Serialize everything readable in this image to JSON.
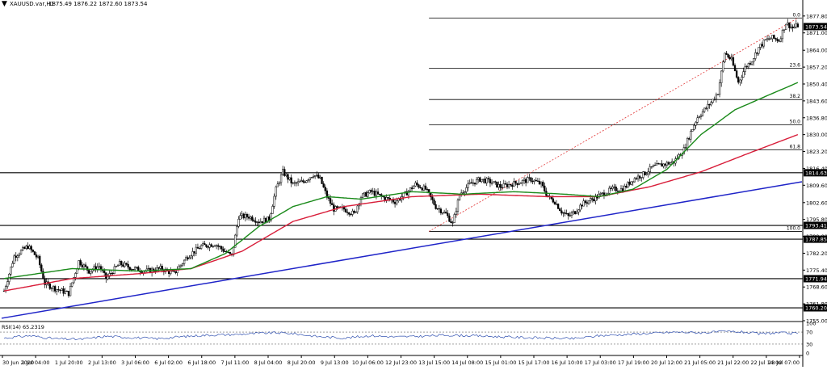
{
  "header": {
    "symbol": "XAUUSD.var,H1",
    "ohlc": "1875.49 1876.22 1872.60 1873.54"
  },
  "colors": {
    "up_candle": "#000000",
    "down_candle": "#000000",
    "ma_fast": "#1a8a1a",
    "ma_slow": "#d81e3a",
    "trendline": "#1f24c8",
    "fib_diagonal": "#e03030",
    "rsi": "#3050b0",
    "level_lines": "#000000"
  },
  "chart_data": [
    {
      "type": "line",
      "title": "XAUUSD.var,H1",
      "ylim": [
        1755.0,
        1881.0
      ],
      "y_ticks": [
        "1877.80",
        "1871.00",
        "1864.00",
        "1857.20",
        "1850.40",
        "1843.60",
        "1836.80",
        "1830.00",
        "1823.20",
        "1816.40",
        "1809.60",
        "1802.60",
        "1795.80",
        "1789.00",
        "1782.20",
        "1775.40",
        "1768.60",
        "1761.80",
        "1755.00"
      ],
      "x_labels": [
        "30 Jun 2020",
        "1 Jul 04:00",
        "1 Jul 20:00",
        "2 Jul 13:00",
        "3 Jul 06:00",
        "6 Jul 02:00",
        "6 Jul 18:00",
        "7 Jul 11:00",
        "8 Jul 04:00",
        "8 Jul 20:00",
        "9 Jul 13:00",
        "10 Jul 06:00",
        "12 Jul 23:00",
        "13 Jul 15:00",
        "14 Jul 08:00",
        "15 Jul 01:00",
        "15 Jul 17:00",
        "16 Jul 10:00",
        "17 Jul 03:00",
        "17 Jul 19:00",
        "20 Jul 12:00",
        "21 Jul 05:00",
        "21 Jul 22:00",
        "22 Jul 14:00",
        "23 Jul 07:00"
      ],
      "price_levels": [
        {
          "label": "1814.63",
          "value": 1814.63
        },
        {
          "label": "1793.41",
          "value": 1793.41
        },
        {
          "label": "1787.85",
          "value": 1787.85
        },
        {
          "label": "1771.94",
          "value": 1771.94
        },
        {
          "label": "1760.20",
          "value": 1760.2
        }
      ],
      "current_price": {
        "label": "1873.54",
        "value": 1873.54
      },
      "fibonacci": {
        "high": 1877.0,
        "low": 1791.0,
        "levels": [
          {
            "label": "0.0",
            "ratio": 0.0
          },
          {
            "label": "23.6",
            "ratio": 0.236
          },
          {
            "label": "38.2",
            "ratio": 0.382
          },
          {
            "label": "50.0",
            "ratio": 0.5
          },
          {
            "label": "61.8",
            "ratio": 0.618
          },
          {
            "label": "100.0",
            "ratio": 1.0
          }
        ]
      },
      "trendline": [
        {
          "x": "30 Jun 2020",
          "y": 1756.0
        },
        {
          "x": "23 Jul 07:00",
          "y": 1811.0
        }
      ],
      "price_anchors": [
        [
          0,
          1767
        ],
        [
          6,
          1781
        ],
        [
          14,
          1785
        ],
        [
          20,
          1780
        ],
        [
          24,
          1770
        ],
        [
          30,
          1768
        ],
        [
          38,
          1766
        ],
        [
          44,
          1779
        ],
        [
          50,
          1775
        ],
        [
          56,
          1777
        ],
        [
          60,
          1772
        ],
        [
          68,
          1778
        ],
        [
          76,
          1776
        ],
        [
          84,
          1775
        ],
        [
          92,
          1776
        ],
        [
          100,
          1774
        ],
        [
          108,
          1781
        ],
        [
          116,
          1785
        ],
        [
          124,
          1786
        ],
        [
          130,
          1783
        ],
        [
          134,
          1781
        ],
        [
          138,
          1797
        ],
        [
          144,
          1797
        ],
        [
          150,
          1795
        ],
        [
          156,
          1796
        ],
        [
          160,
          1808
        ],
        [
          164,
          1815
        ],
        [
          170,
          1810
        ],
        [
          176,
          1811
        ],
        [
          182,
          1814
        ],
        [
          186,
          1812
        ],
        [
          190,
          1805
        ],
        [
          194,
          1800
        ],
        [
          200,
          1800
        ],
        [
          206,
          1798
        ],
        [
          210,
          1805
        ],
        [
          216,
          1807
        ],
        [
          222,
          1805
        ],
        [
          230,
          1803
        ],
        [
          236,
          1806
        ],
        [
          242,
          1810
        ],
        [
          248,
          1808
        ],
        [
          254,
          1801
        ],
        [
          260,
          1798
        ],
        [
          264,
          1794
        ],
        [
          268,
          1806
        ],
        [
          274,
          1810
        ],
        [
          280,
          1812
        ],
        [
          286,
          1811
        ],
        [
          292,
          1809
        ],
        [
          298,
          1810
        ],
        [
          304,
          1811
        ],
        [
          310,
          1812
        ],
        [
          316,
          1810
        ],
        [
          320,
          1805
        ],
        [
          324,
          1803
        ],
        [
          328,
          1799
        ],
        [
          332,
          1797
        ],
        [
          336,
          1799
        ],
        [
          340,
          1802
        ],
        [
          346,
          1804
        ],
        [
          352,
          1806
        ],
        [
          358,
          1808
        ],
        [
          364,
          1808
        ],
        [
          370,
          1812
        ],
        [
          376,
          1814
        ],
        [
          382,
          1817
        ],
        [
          388,
          1818
        ],
        [
          394,
          1819
        ],
        [
          400,
          1824
        ],
        [
          404,
          1831
        ],
        [
          408,
          1837
        ],
        [
          412,
          1840
        ],
        [
          416,
          1843
        ],
        [
          420,
          1847
        ],
        [
          424,
          1863
        ],
        [
          428,
          1860
        ],
        [
          432,
          1851
        ],
        [
          436,
          1857
        ],
        [
          440,
          1860
        ],
        [
          444,
          1865
        ],
        [
          448,
          1868
        ],
        [
          452,
          1869
        ],
        [
          456,
          1868
        ],
        [
          460,
          1875
        ],
        [
          464,
          1873
        ],
        [
          467,
          1874
        ]
      ],
      "ma_fast_anchors": [
        [
          0,
          1772
        ],
        [
          40,
          1776
        ],
        [
          80,
          1775
        ],
        [
          110,
          1776
        ],
        [
          130,
          1782
        ],
        [
          150,
          1793
        ],
        [
          170,
          1801
        ],
        [
          190,
          1805
        ],
        [
          210,
          1804
        ],
        [
          240,
          1807
        ],
        [
          270,
          1806
        ],
        [
          300,
          1807
        ],
        [
          330,
          1806
        ],
        [
          350,
          1805
        ],
        [
          370,
          1808
        ],
        [
          390,
          1816
        ],
        [
          410,
          1830
        ],
        [
          430,
          1840
        ],
        [
          450,
          1846
        ],
        [
          467,
          1851
        ]
      ],
      "ma_slow_anchors": [
        [
          0,
          1767
        ],
        [
          40,
          1772
        ],
        [
          80,
          1774
        ],
        [
          110,
          1776
        ],
        [
          140,
          1783
        ],
        [
          170,
          1795
        ],
        [
          200,
          1801
        ],
        [
          240,
          1805
        ],
        [
          280,
          1806
        ],
        [
          320,
          1805
        ],
        [
          350,
          1805
        ],
        [
          380,
          1809
        ],
        [
          410,
          1815
        ],
        [
          440,
          1823
        ],
        [
          467,
          1830
        ]
      ],
      "candle_count": 468
    },
    {
      "type": "line",
      "title": "RSI(14) 65.2319",
      "ylim": [
        0,
        100
      ],
      "y_ticks": [
        "100",
        "70",
        "30",
        "0"
      ],
      "levels": [
        70,
        30
      ],
      "rsi_anchors": [
        [
          0,
          50
        ],
        [
          15,
          58
        ],
        [
          30,
          48
        ],
        [
          45,
          46
        ],
        [
          60,
          56
        ],
        [
          75,
          52
        ],
        [
          90,
          48
        ],
        [
          105,
          55
        ],
        [
          120,
          60
        ],
        [
          135,
          62
        ],
        [
          150,
          66
        ],
        [
          160,
          68
        ],
        [
          170,
          65
        ],
        [
          185,
          55
        ],
        [
          200,
          50
        ],
        [
          215,
          58
        ],
        [
          230,
          54
        ],
        [
          245,
          56
        ],
        [
          260,
          60
        ],
        [
          275,
          58
        ],
        [
          290,
          55
        ],
        [
          305,
          52
        ],
        [
          320,
          50
        ],
        [
          335,
          48
        ],
        [
          350,
          58
        ],
        [
          365,
          62
        ],
        [
          380,
          66
        ],
        [
          395,
          70
        ],
        [
          410,
          68
        ],
        [
          425,
          72
        ],
        [
          435,
          70
        ],
        [
          445,
          64
        ],
        [
          455,
          68
        ],
        [
          467,
          65
        ]
      ]
    }
  ]
}
